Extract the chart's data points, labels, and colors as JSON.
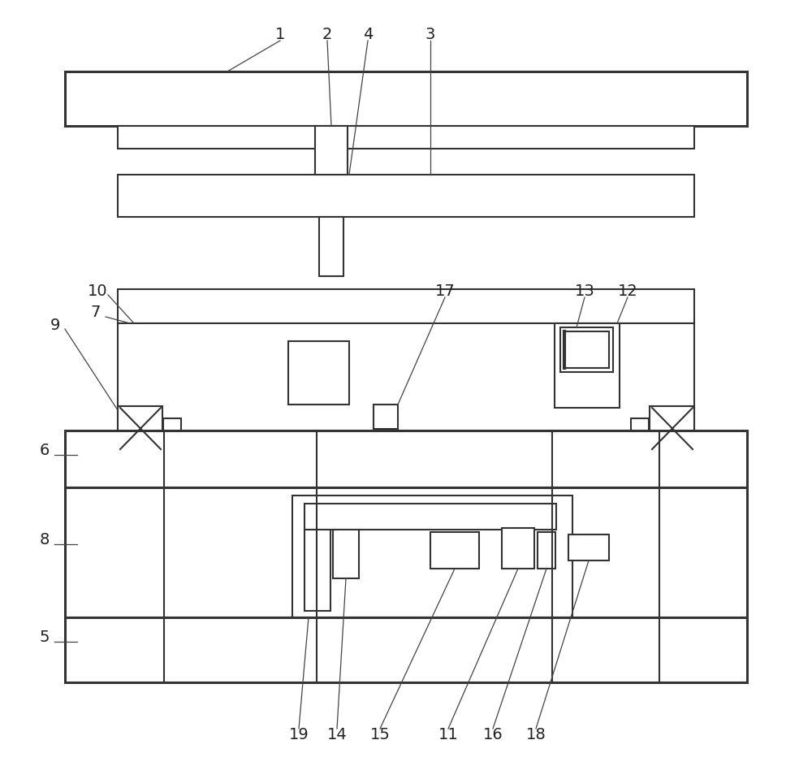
{
  "fig_width": 10.0,
  "fig_height": 9.43,
  "lc": "#333333",
  "lw": 1.5,
  "tlw": 2.2
}
